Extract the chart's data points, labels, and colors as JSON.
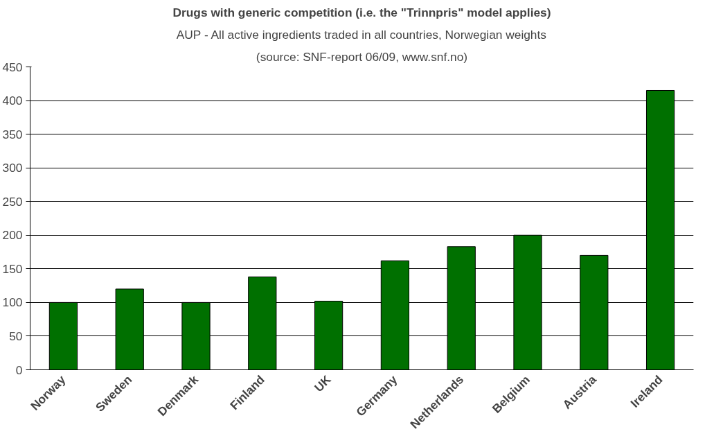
{
  "chart_data": {
    "type": "bar",
    "title": "Drugs with generic competition (i.e. the \"Trinnpris\" model applies)",
    "subtitle": "AUP - All active ingredients traded in all countries, Norwegian weights",
    "annotations": [
      "(source: SNF-report 06/09, www.snf.no)"
    ],
    "categories": [
      "Norway",
      "Sweden",
      "Denmark",
      "Finland",
      "UK",
      "Germany",
      "Netherlands",
      "Belgium",
      "Austria",
      "Ireland"
    ],
    "values": [
      100,
      120,
      100,
      138,
      102,
      162,
      183,
      200,
      170,
      415
    ],
    "color": "#007000",
    "ylim": [
      0,
      450
    ],
    "yticks": [
      0,
      50,
      100,
      150,
      200,
      250,
      300,
      350,
      400,
      450
    ],
    "grid": "y"
  }
}
